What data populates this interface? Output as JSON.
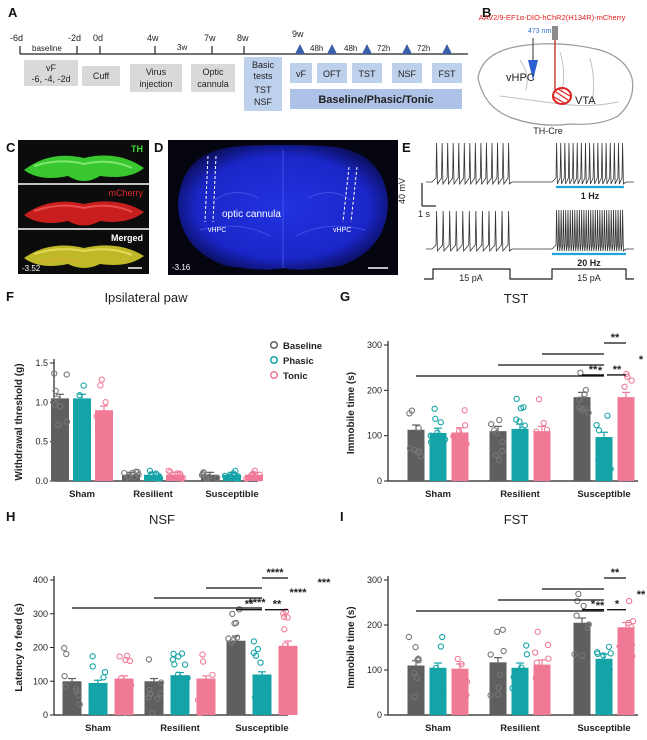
{
  "panel_letters": {
    "A": "A",
    "B": "B",
    "C": "C",
    "D": "D",
    "E": "E",
    "F": "F",
    "G": "G",
    "H": "H",
    "I": "I"
  },
  "timeline": {
    "days": [
      "-6d",
      "-2d",
      "0d",
      "4w",
      "3w",
      "7w",
      "8w",
      "9w"
    ],
    "baseline_label": "baseline",
    "vf_box": [
      "vF",
      "-6, -4, -2d"
    ],
    "cuff": "Cuff",
    "virus": [
      "Virus",
      "injection"
    ],
    "optic": [
      "Optic",
      "cannula"
    ],
    "basic": [
      "Basic",
      "tests",
      "TST",
      "NSF"
    ],
    "intervals": [
      "48h",
      "48h",
      "72h",
      "72h"
    ],
    "tests": [
      "vF",
      "OFT",
      "TST",
      "NSF",
      "FST"
    ],
    "bar_label": "Baseline/Phasic/Tonic"
  },
  "panel_b": {
    "virus": "AAV2/9-EF1α-DIO-hChR2(H134R)-mCherry",
    "laser": "473 nm",
    "vhpc": "vHPC",
    "vta": "VTA",
    "mouse": "TH-Cre"
  },
  "panel_c": {
    "labels": [
      "TH",
      "mCherry",
      "Merged"
    ],
    "coord": "-3.52",
    "colors": {
      "th": "#3ddc32",
      "mcherry": "#e02a2a",
      "merged": "#d8c832",
      "bg": "#0c0c0c"
    }
  },
  "panel_d": {
    "label": "optic cannula",
    "left": "vHPC",
    "right": "vHPC",
    "coord": "-3.16",
    "colors": {
      "bg": "#050510",
      "tissue": "#1a28d8"
    }
  },
  "panel_e": {
    "y_scale": "40 mV",
    "x_scale": "1 s",
    "hz1": "1 Hz",
    "hz2": "20 Hz",
    "current1": "15 pA",
    "current2": "15 pA",
    "colors": {
      "light": "#1ea3dc"
    }
  },
  "legend": {
    "items": [
      "Baseline",
      "Phasic",
      "Tonic"
    ],
    "colors": {
      "baseline": "#5f5f5f",
      "phasic": "#14a3a6",
      "tonic": "#f07a96"
    }
  },
  "chart_data": [
    {
      "panel": "F",
      "type": "bar",
      "title": "Ipsilateral paw",
      "ylabel": "Withdrawal threshold (g)",
      "ylim": [
        0,
        1.5
      ],
      "yticks": [
        "0.0",
        "0.5",
        "1.0",
        "1.5"
      ],
      "categories": [
        "Sham",
        "Resilient",
        "Susceptible"
      ],
      "series": [
        {
          "name": "Baseline",
          "values": [
            1.05,
            0.08,
            0.08
          ]
        },
        {
          "name": "Phasic",
          "values": [
            1.05,
            0.08,
            0.08
          ]
        },
        {
          "name": "Tonic",
          "values": [
            0.9,
            0.08,
            0.08
          ]
        }
      ],
      "significance": []
    },
    {
      "panel": "G",
      "type": "bar",
      "title": "TST",
      "ylabel": "Immobile time (s)",
      "ylim": [
        0,
        300
      ],
      "yticks": [
        "0",
        "100",
        "200",
        "300"
      ],
      "categories": [
        "Sham",
        "Resilient",
        "Susceptible"
      ],
      "series": [
        {
          "name": "Baseline",
          "values": [
            113,
            110,
            185
          ]
        },
        {
          "name": "Phasic",
          "values": [
            106,
            115,
            97
          ]
        },
        {
          "name": "Tonic",
          "values": [
            107,
            110,
            185
          ]
        }
      ],
      "significance": [
        "**",
        "*",
        "*",
        "*",
        "**",
        "**"
      ]
    },
    {
      "panel": "H",
      "type": "bar",
      "title": "NSF",
      "ylabel": "Latency to feed (s)",
      "ylim": [
        0,
        400
      ],
      "yticks": [
        "0",
        "100",
        "200",
        "300",
        "400"
      ],
      "categories": [
        "Sham",
        "Resilient",
        "Susceptible"
      ],
      "series": [
        {
          "name": "Baseline",
          "values": [
            100,
            100,
            220
          ]
        },
        {
          "name": "Phasic",
          "values": [
            95,
            118,
            120
          ]
        },
        {
          "name": "Tonic",
          "values": [
            108,
            108,
            205
          ]
        }
      ],
      "significance": [
        "****",
        "***",
        "****",
        "****",
        "**",
        "**"
      ]
    },
    {
      "panel": "I",
      "type": "bar",
      "title": "FST",
      "ylabel": "Immobile time (s)",
      "ylim": [
        0,
        300
      ],
      "yticks": [
        "0",
        "100",
        "200",
        "300"
      ],
      "categories": [
        "Sham",
        "Resilient",
        "Susceptible"
      ],
      "series": [
        {
          "name": "Baseline",
          "values": [
            110,
            117,
            205
          ]
        },
        {
          "name": "Phasic",
          "values": [
            105,
            105,
            125
          ]
        },
        {
          "name": "Tonic",
          "values": [
            103,
            112,
            195
          ]
        }
      ],
      "significance": [
        "**",
        "**",
        "**",
        "**",
        "*",
        "*"
      ]
    }
  ]
}
